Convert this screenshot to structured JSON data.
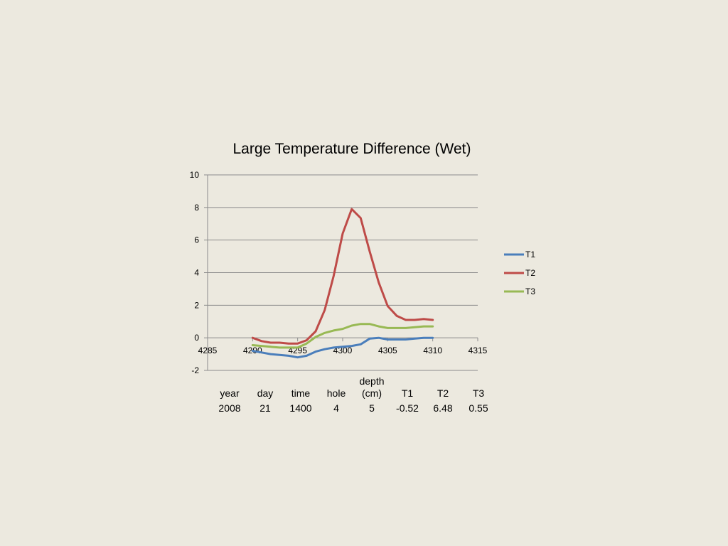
{
  "chart_data": {
    "type": "line",
    "title": "Large Temperature Difference (Wet)",
    "xlabel": "",
    "ylabel": "",
    "xlim": [
      4285,
      4315
    ],
    "ylim": [
      -2,
      10
    ],
    "xticks": [
      "4285",
      "4290",
      "4295",
      "4300",
      "4305",
      "4310",
      "4315"
    ],
    "yticks": [
      "-2",
      "0",
      "2",
      "4",
      "6",
      "8",
      "10"
    ],
    "grid": "horizontal",
    "legend_position": "right",
    "x": [
      4290,
      4291,
      4292,
      4293,
      4294,
      4295,
      4296,
      4297,
      4298,
      4299,
      4300,
      4301,
      4302,
      4303,
      4304,
      4305,
      4306,
      4307,
      4308,
      4309,
      4310
    ],
    "series": [
      {
        "name": "T1",
        "color": "#4A7EBB",
        "values": [
          -0.8,
          -0.9,
          -1.0,
          -1.05,
          -1.1,
          -1.2,
          -1.1,
          -0.85,
          -0.7,
          -0.6,
          -0.55,
          -0.5,
          -0.4,
          -0.05,
          0.0,
          -0.1,
          -0.1,
          -0.1,
          -0.05,
          0.0,
          0.0
        ]
      },
      {
        "name": "T2",
        "color": "#BE4B48",
        "values": [
          0.0,
          -0.2,
          -0.3,
          -0.3,
          -0.35,
          -0.35,
          -0.15,
          0.4,
          1.7,
          3.8,
          6.4,
          7.9,
          7.35,
          5.3,
          3.4,
          1.95,
          1.35,
          1.1,
          1.1,
          1.15,
          1.1
        ]
      },
      {
        "name": "T3",
        "color": "#98B954",
        "values": [
          -0.45,
          -0.5,
          -0.55,
          -0.6,
          -0.6,
          -0.6,
          -0.35,
          0.05,
          0.3,
          0.45,
          0.55,
          0.75,
          0.85,
          0.85,
          0.7,
          0.6,
          0.6,
          0.6,
          0.65,
          0.7,
          0.7
        ]
      }
    ]
  },
  "info_table": {
    "headers": [
      "year",
      "day",
      "time",
      "hole",
      "depth",
      "T1",
      "T2",
      "T3"
    ],
    "depth_unit": "(cm)",
    "values": [
      "2008",
      "21",
      "1400",
      "4",
      "5",
      "-0.52",
      "6.48",
      "0.55"
    ]
  }
}
